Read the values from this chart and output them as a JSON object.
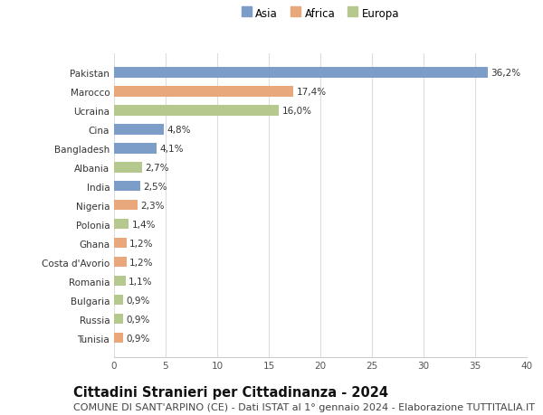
{
  "categories": [
    "Tunisia",
    "Russia",
    "Bulgaria",
    "Romania",
    "Costa d'Avorio",
    "Ghana",
    "Polonia",
    "Nigeria",
    "India",
    "Albania",
    "Bangladesh",
    "Cina",
    "Ucraina",
    "Marocco",
    "Pakistan"
  ],
  "values": [
    0.9,
    0.9,
    0.9,
    1.1,
    1.2,
    1.2,
    1.4,
    2.3,
    2.5,
    2.7,
    4.1,
    4.8,
    16.0,
    17.4,
    36.2
  ],
  "labels": [
    "0,9%",
    "0,9%",
    "0,9%",
    "1,1%",
    "1,2%",
    "1,2%",
    "1,4%",
    "2,3%",
    "2,5%",
    "2,7%",
    "4,1%",
    "4,8%",
    "16,0%",
    "17,4%",
    "36,2%"
  ],
  "colors": [
    "#e8a87c",
    "#b5c98e",
    "#b5c98e",
    "#b5c98e",
    "#e8a87c",
    "#e8a87c",
    "#b5c98e",
    "#e8a87c",
    "#7b9dc7",
    "#b5c98e",
    "#7b9dc7",
    "#7b9dc7",
    "#b5c98e",
    "#e8a87c",
    "#7b9dc7"
  ],
  "legend_labels": [
    "Asia",
    "Africa",
    "Europa"
  ],
  "legend_colors": [
    "#7b9dc7",
    "#e8a87c",
    "#b5c98e"
  ],
  "xlim": [
    0,
    40
  ],
  "xticks": [
    0,
    5,
    10,
    15,
    20,
    25,
    30,
    35,
    40
  ],
  "title": "Cittadini Stranieri per Cittadinanza - 2024",
  "subtitle": "COMUNE DI SANT'ARPINO (CE) - Dati ISTAT al 1° gennaio 2024 - Elaborazione TUTTITALIA.IT",
  "bg_color": "#ffffff",
  "plot_bg_color": "#ffffff",
  "bar_height": 0.55,
  "title_fontsize": 10.5,
  "subtitle_fontsize": 8,
  "label_fontsize": 7.5,
  "tick_fontsize": 7.5,
  "legend_fontsize": 8.5
}
